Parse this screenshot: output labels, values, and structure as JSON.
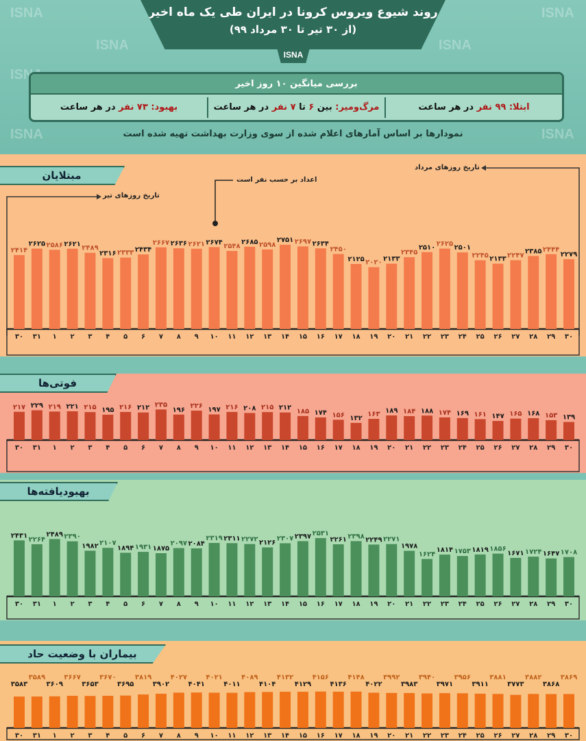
{
  "header": {
    "title": "روند شیوع ویروس کرونا در ایران طی یک ماه اخیر",
    "subtitle": "(از ۳۰ تیر تا ۳۰ مرداد ۹۹)",
    "source": "ISNA",
    "watermark": "ISNA"
  },
  "summary": {
    "heading": "بررسی میانگین ۱۰ روز اخیر",
    "infection": {
      "label": "ابتلا:",
      "value": "۹۹ نفر",
      "suffix": "در هر ساعت"
    },
    "death": {
      "label": "مرگ‌ومیر:",
      "pre": "بین",
      "v1": "۶",
      "mid": "تا",
      "v2": "۷ نفر",
      "suffix": "در هر ساعت"
    },
    "recovery": {
      "label": "بهبود:",
      "value": "۷۳ نفر",
      "suffix": "در هر ساعت"
    }
  },
  "footnote": "نمودارها بر اساس آمارهای اعلام شده از سوی وزارت بهداشت تهیه شده است",
  "annotations": {
    "tir": "تاریخ روزهای تیر",
    "mordad": "تاریخ روزهای مرداد",
    "unit": "اعداد بر حسب نفر است"
  },
  "chart_data": [
    {
      "type": "bar",
      "title": "مبتلایان",
      "categories": [
        "۳۰",
        "۳۱",
        "۱",
        "۲",
        "۳",
        "۴",
        "۵",
        "۶",
        "۷",
        "۸",
        "۹",
        "۱۰",
        "۱۱",
        "۱۲",
        "۱۳",
        "۱۴",
        "۱۵",
        "۱۶",
        "۱۷",
        "۱۸",
        "۱۹",
        "۲۰",
        "۲۱",
        "۲۲",
        "۲۳",
        "۲۴",
        "۲۵",
        "۲۶",
        "۲۷",
        "۲۸",
        "۲۹",
        "۳۰"
      ],
      "values": [
        2414,
        2625,
        2586,
        2621,
        2489,
        2316,
        2333,
        2434,
        2667,
        2636,
        2621,
        2674,
        2548,
        2685,
        2598,
        2751,
        2697,
        2634,
        2450,
        2125,
        2020,
        2133,
        2345,
        2510,
        2625,
        2501,
        2245,
        2133,
        2247,
        2385,
        2444,
        2279
      ],
      "colors": {
        "bg": "#fbc08a",
        "bar": "#f47c4c",
        "label_a": "#c0502a",
        "label_b": "#1a1a1a"
      }
    },
    {
      "type": "bar",
      "title": "فوتی‌ها",
      "categories": [
        "۳۰",
        "۳۱",
        "۱",
        "۲",
        "۳",
        "۴",
        "۵",
        "۶",
        "۷",
        "۸",
        "۹",
        "۱۰",
        "۱۱",
        "۱۲",
        "۱۳",
        "۱۴",
        "۱۵",
        "۱۶",
        "۱۷",
        "۱۸",
        "۱۹",
        "۲۰",
        "۲۱",
        "۲۲",
        "۲۳",
        "۲۴",
        "۲۵",
        "۲۶",
        "۲۷",
        "۲۸",
        "۲۹",
        "۳۰"
      ],
      "values": [
        217,
        229,
        219,
        221,
        215,
        195,
        216,
        212,
        235,
        196,
        226,
        197,
        216,
        208,
        215,
        212,
        185,
        174,
        156,
        132,
        163,
        189,
        184,
        188,
        174,
        169,
        161,
        147,
        165,
        168,
        153,
        139
      ],
      "colors": {
        "bg": "#f7a690",
        "bar": "#c9472c",
        "label_a": "#a8301c",
        "label_b": "#1a1a1a"
      }
    },
    {
      "type": "bar",
      "title": "بهبودیافته‌ها",
      "categories": [
        "۳۰",
        "۳۱",
        "۱",
        "۲",
        "۳",
        "۴",
        "۵",
        "۶",
        "۷",
        "۸",
        "۹",
        "۱۰",
        "۱۱",
        "۱۲",
        "۱۳",
        "۱۴",
        "۱۵",
        "۱۶",
        "۱۷",
        "۱۸",
        "۱۹",
        "۲۰",
        "۲۱",
        "۲۲",
        "۲۳",
        "۲۴",
        "۲۵",
        "۲۶",
        "۲۷",
        "۲۸",
        "۲۹",
        "۳۰"
      ],
      "values": [
        2431,
        2264,
        2489,
        2390,
        1982,
        2107,
        1894,
        1931,
        1875,
        2097,
        2084,
        2319,
        2311,
        2272,
        2126,
        2307,
        2397,
        2531,
        2261,
        2398,
        2249,
        2271,
        1978,
        1624,
        1814,
        1753,
        1819,
        1856,
        1671,
        1724,
        1647,
        1708
      ],
      "colors": {
        "bg": "#abdab1",
        "bar": "#4b8f5b",
        "label_a": "#1a1a1a",
        "label_b": "#2f6e40"
      }
    },
    {
      "type": "bar",
      "title": "بیماران با وضعیت حاد",
      "categories": [
        "۳۰",
        "۳۱",
        "۱",
        "۲",
        "۳",
        "۴",
        "۵",
        "۶",
        "۷",
        "۸",
        "۹",
        "۱۰",
        "۱۱",
        "۱۲",
        "۱۳",
        "۱۴",
        "۱۵",
        "۱۶",
        "۱۷",
        "۱۸",
        "۱۹",
        "۲۰",
        "۲۱",
        "۲۲",
        "۲۳",
        "۲۴",
        "۲۵",
        "۲۶",
        "۲۷",
        "۲۸",
        "۲۹",
        "۳۰"
      ],
      "values": [
        3583,
        3589,
        3609,
        3667,
        3653,
        3670,
        3695,
        3819,
        3902,
        4027,
        4041,
        4021,
        4011,
        4089,
        4104,
        4132,
        4129,
        4156,
        4136,
        4148,
        4022,
        3992,
        3983,
        3940,
        3971,
        3956,
        3911,
        3881,
        3773,
        3882,
        3868,
        3869
      ],
      "colors": {
        "bg": "#f9c282",
        "bar": "#f0731a",
        "label_a": "#1a1a1a",
        "label_b": "#c0601a"
      }
    }
  ]
}
